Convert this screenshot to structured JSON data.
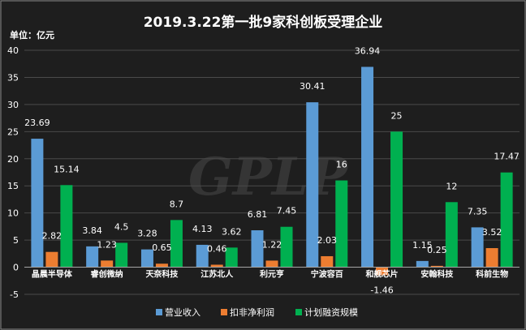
{
  "chart_data": {
    "type": "bar",
    "title": "2019.3.22第一批9家科创板受理企业",
    "unit_label": "单位：亿元",
    "ylim": [
      -5,
      40
    ],
    "ticks": [
      -5,
      0,
      5,
      10,
      15,
      20,
      25,
      30,
      35,
      40
    ],
    "grid": true,
    "legend_position": "bottom-center",
    "watermark": "GPLP",
    "categories": [
      "晶晨半导体",
      "睿创微纳",
      "天奈科技",
      "江苏北人",
      "利元亨",
      "宁波容百",
      "和舰芯片",
      "安翰科技",
      "科前生物"
    ],
    "series": [
      {
        "name": "营业收入",
        "color": "#5b9bd5",
        "values": [
          23.69,
          3.84,
          3.28,
          4.13,
          6.81,
          30.41,
          36.94,
          1.15,
          7.35
        ],
        "labels": [
          "23.69",
          "3.84",
          "3.28",
          "4.13",
          "6.81",
          "30.41",
          "36.94",
          "1.15",
          "7.35"
        ]
      },
      {
        "name": "扣非净利润",
        "color": "#ed7d31",
        "values": [
          2.82,
          1.23,
          0.65,
          0.46,
          1.22,
          2.03,
          -1.46,
          0.25,
          3.52
        ],
        "labels": [
          "2.82",
          "1.23",
          "0.65",
          "0.46",
          "1.22",
          "2.03",
          "-1.46",
          "0.25",
          "3.52"
        ]
      },
      {
        "name": "计划融资规模",
        "color": "#00b050",
        "values": [
          15.14,
          4.5,
          8.7,
          3.62,
          7.45,
          16,
          25,
          12,
          17.47
        ],
        "labels": [
          "15.14",
          "4.5",
          "8.7",
          "3.62",
          "7.45",
          "16",
          "25",
          "12",
          "17.47"
        ]
      }
    ]
  }
}
